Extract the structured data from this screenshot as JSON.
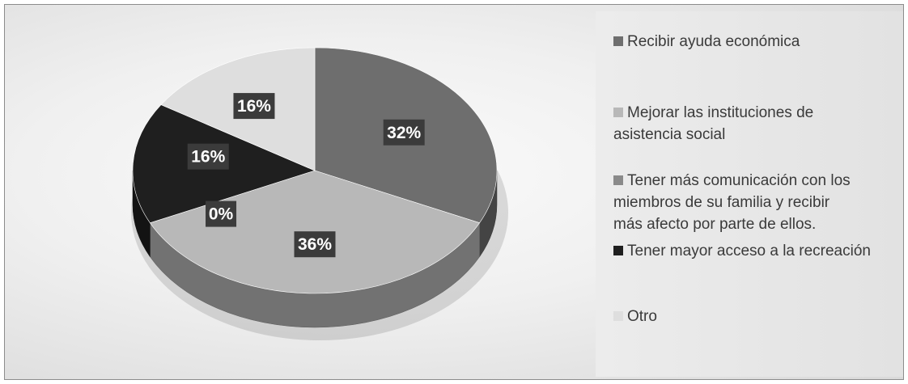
{
  "chart_data": {
    "type": "pie",
    "title": "",
    "series": [
      {
        "values": [
          32,
          36,
          0,
          16,
          16
        ]
      }
    ],
    "categories": [
      "Recibir ayuda económica",
      "Mejorar las instituciones de asistencia social",
      "Tener más comunicación con los miembros de su familia y recibir más afecto por parte de ellos.",
      "Tener mayor acceso a la recreación",
      "Otro"
    ],
    "data_labels": [
      "32%",
      "36%",
      "0%",
      "16%",
      "16%"
    ],
    "colors": [
      "#6e6e6e",
      "#b8b8b8",
      "#8a8a8a",
      "#1f1f1f",
      "#dedede"
    ],
    "legend_position": "right"
  },
  "legend": {
    "items": [
      {
        "lines": [
          "Recibir ayuda económica"
        ]
      },
      {
        "lines": [
          "Mejorar las instituciones de",
          "asistencia social"
        ]
      },
      {
        "lines": [
          "Tener más comunicación con los",
          "miembros de su familia y recibir",
          "más afecto por parte de ellos."
        ]
      },
      {
        "lines": [
          "Tener mayor acceso a la recreación"
        ]
      },
      {
        "lines": [
          "Otro"
        ]
      }
    ]
  }
}
